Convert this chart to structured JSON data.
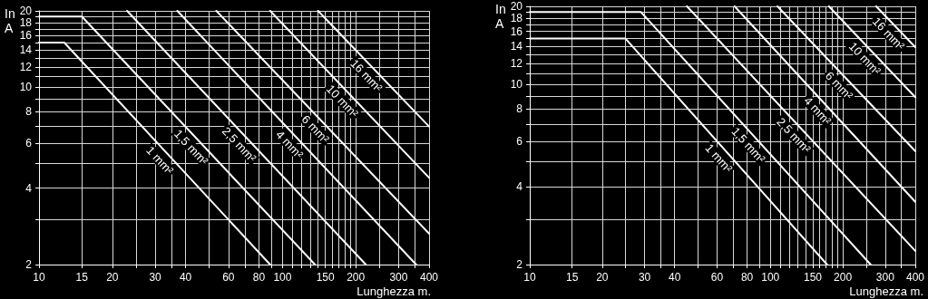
{
  "chart_data": [
    {
      "type": "line",
      "xlabel": "Lunghezza m.",
      "ylabel": "In\nA",
      "xlim": [
        10,
        400
      ],
      "ylim": [
        2,
        20
      ],
      "xticks": [
        10,
        15,
        20,
        {
          "value": 25,
          "label": null
        },
        30,
        {
          "value": 35,
          "label": null
        },
        40,
        {
          "value": 50,
          "label": null
        },
        60,
        {
          "value": 70,
          "label": null
        },
        80,
        {
          "value": 90,
          "label": null
        },
        100,
        {
          "value": 110,
          "label": null
        },
        {
          "value": 120,
          "label": null
        },
        {
          "value": 130,
          "label": null
        },
        {
          "value": 140,
          "label": null
        },
        150,
        {
          "value": 160,
          "label": null
        },
        {
          "value": 170,
          "label": null
        },
        {
          "value": 180,
          "label": null
        },
        {
          "value": 190,
          "label": null
        },
        200,
        {
          "value": 250,
          "label": null
        },
        300,
        {
          "value": 350,
          "label": null
        },
        400
      ],
      "yticks": [
        2,
        {
          "value": 3,
          "label": null
        },
        4,
        {
          "value": 5,
          "label": null
        },
        6,
        {
          "value": 7,
          "label": null
        },
        8,
        {
          "value": 9,
          "label": null
        },
        10,
        {
          "value": 11,
          "label": null
        },
        12,
        {
          "value": 13,
          "label": null
        },
        14,
        {
          "value": 15,
          "label": null
        },
        16,
        {
          "value": 17,
          "label": null
        },
        18,
        {
          "value": 19,
          "label": null
        },
        20
      ],
      "log": "xy",
      "grid": true,
      "legend": false,
      "marker": "none",
      "line_style": "solid",
      "series": [
        {
          "name": "1 mm²",
          "color": "#ffffff",
          "x": [
            10,
            12.7,
            89
          ],
          "values": [
            15,
            15,
            2
          ]
        },
        {
          "name": "1,5 mm²",
          "color": "#ffffff",
          "x": [
            10,
            15,
            136
          ],
          "values": [
            19,
            19,
            2
          ]
        },
        {
          "name": "2,5 mm²",
          "color": "#ffffff",
          "x": [
            23,
            220
          ],
          "values": [
            20,
            2
          ]
        },
        {
          "name": "4 mm²",
          "color": "#ffffff",
          "x": [
            37,
            354
          ],
          "values": [
            20,
            2
          ]
        },
        {
          "name": "6 mm²",
          "color": "#ffffff",
          "x": [
            53.5,
            400
          ],
          "values": [
            20,
            2.65
          ]
        },
        {
          "name": "10 mm²",
          "color": "#ffffff",
          "x": [
            89,
            400
          ],
          "values": [
            20,
            4.4
          ]
        },
        {
          "name": "16 mm²",
          "color": "#ffffff",
          "x": [
            140,
            400
          ],
          "values": [
            20,
            7
          ]
        }
      ]
    },
    {
      "type": "line",
      "xlabel": "Lunghezza m.",
      "ylabel": "In\nA",
      "xlim": [
        10,
        400
      ],
      "ylim": [
        2,
        20
      ],
      "xticks": [
        10,
        15,
        20,
        {
          "value": 25,
          "label": null
        },
        30,
        {
          "value": 35,
          "label": null
        },
        40,
        {
          "value": 50,
          "label": null
        },
        60,
        {
          "value": 70,
          "label": null
        },
        80,
        {
          "value": 90,
          "label": null
        },
        100,
        {
          "value": 110,
          "label": null
        },
        {
          "value": 120,
          "label": null
        },
        {
          "value": 130,
          "label": null
        },
        {
          "value": 140,
          "label": null
        },
        150,
        {
          "value": 160,
          "label": null
        },
        {
          "value": 170,
          "label": null
        },
        {
          "value": 180,
          "label": null
        },
        {
          "value": 190,
          "label": null
        },
        200,
        {
          "value": 250,
          "label": null
        },
        300,
        {
          "value": 350,
          "label": null
        },
        400
      ],
      "yticks": [
        2,
        {
          "value": 3,
          "label": null
        },
        4,
        {
          "value": 5,
          "label": null
        },
        6,
        {
          "value": 7,
          "label": null
        },
        8,
        {
          "value": 9,
          "label": null
        },
        10,
        {
          "value": 11,
          "label": null
        },
        12,
        {
          "value": 13,
          "label": null
        },
        14,
        {
          "value": 15,
          "label": null
        },
        16,
        {
          "value": 17,
          "label": null
        },
        18,
        {
          "value": 19,
          "label": null
        },
        20
      ],
      "log": "xy",
      "grid": true,
      "legend": false,
      "marker": "none",
      "line_style": "solid",
      "series": [
        {
          "name": "1 mm²",
          "color": "#ffffff",
          "x": [
            10,
            25,
            172
          ],
          "values": [
            15,
            15,
            2
          ]
        },
        {
          "name": "1,5 mm²",
          "color": "#ffffff",
          "x": [
            10,
            29,
            261
          ],
          "values": [
            19,
            19,
            2
          ]
        },
        {
          "name": "2,5 mm²",
          "color": "#ffffff",
          "x": [
            45,
            400
          ],
          "values": [
            20,
            2.26
          ]
        },
        {
          "name": "4 mm²",
          "color": "#ffffff",
          "x": [
            71,
            400
          ],
          "values": [
            20,
            3.5
          ]
        },
        {
          "name": "6 mm²",
          "color": "#ffffff",
          "x": [
            107,
            400
          ],
          "values": [
            20,
            5.5
          ]
        },
        {
          "name": "10 mm²",
          "color": "#ffffff",
          "x": [
            175,
            400
          ],
          "values": [
            20,
            8.9
          ]
        },
        {
          "name": "16 mm²",
          "color": "#ffffff",
          "x": [
            275,
            400
          ],
          "values": [
            20,
            13.9
          ]
        }
      ]
    }
  ]
}
